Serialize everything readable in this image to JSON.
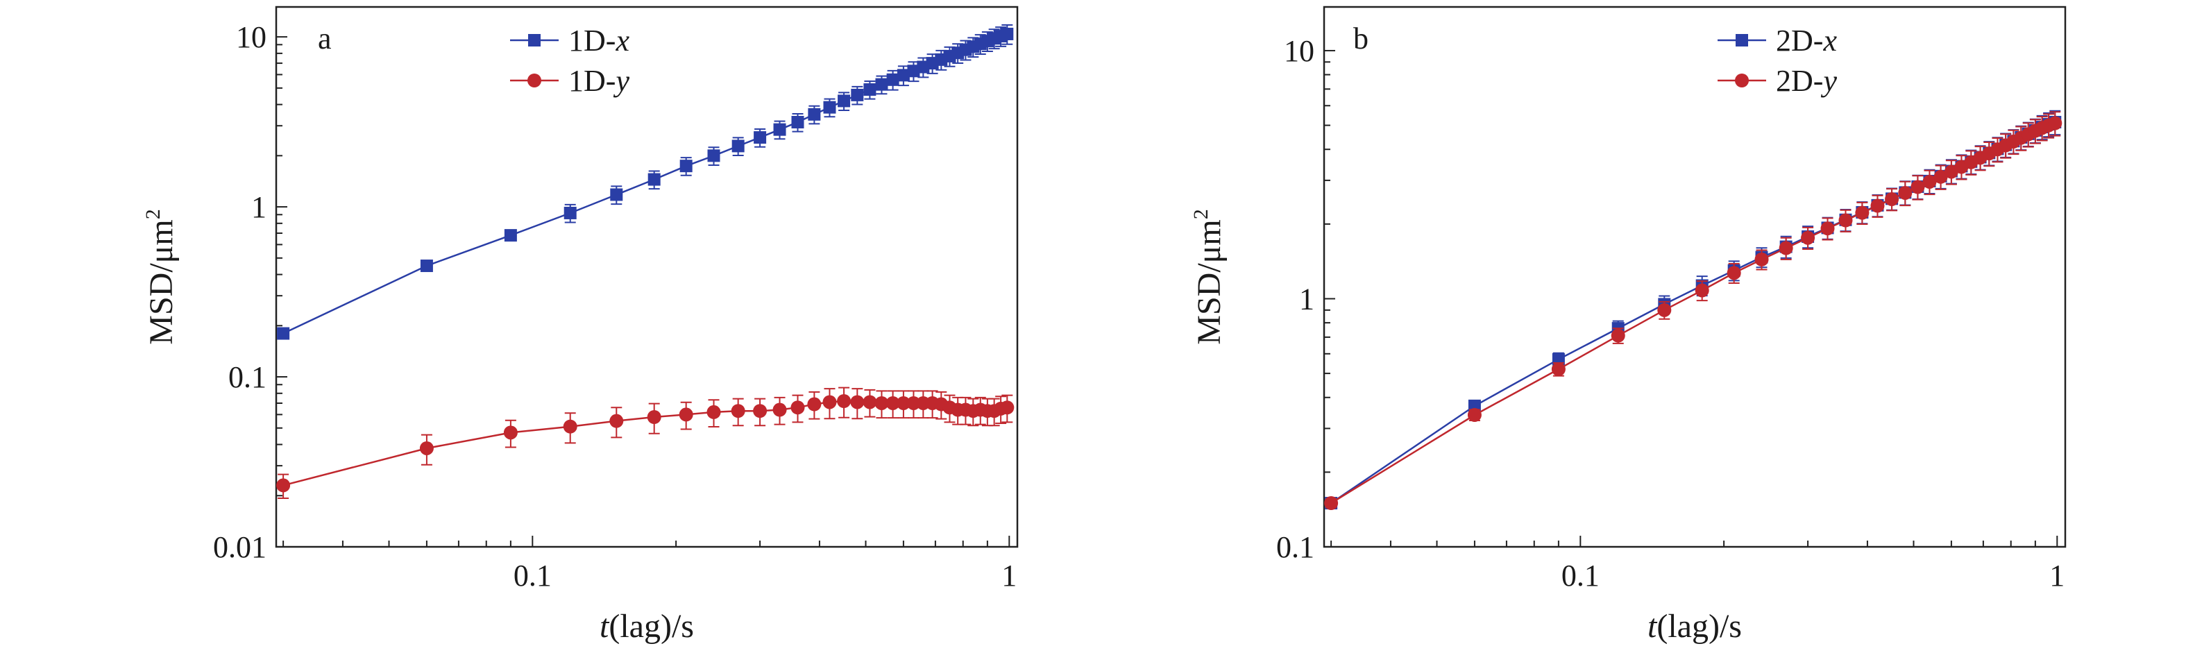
{
  "chart_data": [
    {
      "type": "line",
      "panel_label": "a",
      "xlabel_italic": "t",
      "xlabel_rest": "(lag)/s",
      "ylabel": "MSD/μm",
      "ylabel_sup": "2",
      "xscale": "log",
      "yscale": "log",
      "xlim": [
        0.029,
        1.04
      ],
      "ylim": [
        0.01,
        15
      ],
      "grid": false,
      "legend_position": "top-center",
      "x_ticks": [
        {
          "value": 0.1,
          "label": "0.1"
        },
        {
          "value": 1,
          "label": "1"
        }
      ],
      "y_ticks": [
        {
          "value": 0.01,
          "label": "0.01"
        },
        {
          "value": 0.1,
          "label": "0.1"
        },
        {
          "value": 1,
          "label": "1"
        },
        {
          "value": 10,
          "label": "10"
        }
      ],
      "series": [
        {
          "name_prefix": "1D-",
          "name_italic": "x",
          "color": "#2a3ea6",
          "marker": "square",
          "x": [
            0.03,
            0.06,
            0.09,
            0.12,
            0.15,
            0.18,
            0.21,
            0.24,
            0.27,
            0.3,
            0.33,
            0.36,
            0.39,
            0.42,
            0.45,
            0.48,
            0.51,
            0.54,
            0.57,
            0.6,
            0.63,
            0.66,
            0.69,
            0.72,
            0.75,
            0.78,
            0.81,
            0.84,
            0.87,
            0.9,
            0.93,
            0.96,
            0.99
          ],
          "y": [
            0.18,
            0.45,
            0.68,
            0.92,
            1.18,
            1.45,
            1.74,
            2.0,
            2.28,
            2.56,
            2.85,
            3.15,
            3.5,
            3.85,
            4.2,
            4.55,
            4.9,
            5.25,
            5.6,
            5.95,
            6.3,
            6.65,
            7.0,
            7.35,
            7.7,
            8.05,
            8.4,
            8.75,
            9.1,
            9.45,
            9.8,
            10.1,
            10.4
          ],
          "err_rel": [
            0.04,
            0.05,
            0.07,
            0.12,
            0.12,
            0.12,
            0.12,
            0.12,
            0.12,
            0.12,
            0.12,
            0.12,
            0.12,
            0.12,
            0.12,
            0.12,
            0.12,
            0.12,
            0.13,
            0.13,
            0.13,
            0.13,
            0.13,
            0.13,
            0.13,
            0.13,
            0.13,
            0.13,
            0.13,
            0.13,
            0.13,
            0.13,
            0.13
          ]
        },
        {
          "name_prefix": "1D-",
          "name_italic": "y",
          "color": "#c0272d",
          "marker": "circle",
          "x": [
            0.03,
            0.06,
            0.09,
            0.12,
            0.15,
            0.18,
            0.21,
            0.24,
            0.27,
            0.3,
            0.33,
            0.36,
            0.39,
            0.42,
            0.45,
            0.48,
            0.51,
            0.54,
            0.57,
            0.6,
            0.63,
            0.66,
            0.69,
            0.72,
            0.75,
            0.78,
            0.81,
            0.84,
            0.87,
            0.9,
            0.93,
            0.96,
            0.99
          ],
          "y": [
            0.023,
            0.038,
            0.047,
            0.051,
            0.055,
            0.058,
            0.06,
            0.062,
            0.063,
            0.063,
            0.064,
            0.066,
            0.069,
            0.071,
            0.072,
            0.071,
            0.071,
            0.07,
            0.07,
            0.07,
            0.07,
            0.07,
            0.07,
            0.069,
            0.066,
            0.064,
            0.064,
            0.063,
            0.064,
            0.063,
            0.063,
            0.065,
            0.066
          ],
          "err_rel": [
            0.16,
            0.2,
            0.18,
            0.2,
            0.2,
            0.2,
            0.18,
            0.18,
            0.18,
            0.18,
            0.18,
            0.18,
            0.18,
            0.2,
            0.2,
            0.2,
            0.18,
            0.18,
            0.18,
            0.18,
            0.18,
            0.18,
            0.18,
            0.18,
            0.18,
            0.18,
            0.18,
            0.18,
            0.18,
            0.18,
            0.18,
            0.18,
            0.18
          ]
        }
      ]
    },
    {
      "type": "line",
      "panel_label": "b",
      "xlabel_italic": "t",
      "xlabel_rest": "(lag)/s",
      "ylabel": "MSD/μm",
      "ylabel_sup": "2",
      "xscale": "log",
      "yscale": "log",
      "xlim": [
        0.029,
        1.04
      ],
      "ylim": [
        0.1,
        15
      ],
      "grid": false,
      "legend_position": "top-center",
      "x_ticks": [
        {
          "value": 0.1,
          "label": "0.1"
        },
        {
          "value": 1,
          "label": "1"
        }
      ],
      "y_ticks": [
        {
          "value": 0.1,
          "label": "0.1"
        },
        {
          "value": 1,
          "label": "1"
        },
        {
          "value": 10,
          "label": "10"
        }
      ],
      "series": [
        {
          "name_prefix": "2D-",
          "name_italic": "x",
          "color": "#2a3ea6",
          "marker": "square",
          "x": [
            0.03,
            0.06,
            0.09,
            0.12,
            0.15,
            0.18,
            0.21,
            0.24,
            0.27,
            0.3,
            0.33,
            0.36,
            0.39,
            0.42,
            0.45,
            0.48,
            0.51,
            0.54,
            0.57,
            0.6,
            0.63,
            0.66,
            0.69,
            0.72,
            0.75,
            0.78,
            0.81,
            0.84,
            0.87,
            0.9,
            0.93,
            0.96,
            0.99
          ],
          "y": [
            0.15,
            0.37,
            0.57,
            0.76,
            0.95,
            1.13,
            1.3,
            1.47,
            1.62,
            1.78,
            1.93,
            2.08,
            2.23,
            2.38,
            2.53,
            2.68,
            2.83,
            2.98,
            3.12,
            3.27,
            3.42,
            3.57,
            3.72,
            3.87,
            4.02,
            4.17,
            4.32,
            4.47,
            4.62,
            4.77,
            4.92,
            5.05,
            5.15
          ],
          "err_rel": [
            0.04,
            0.05,
            0.06,
            0.07,
            0.08,
            0.09,
            0.09,
            0.09,
            0.1,
            0.1,
            0.1,
            0.1,
            0.1,
            0.1,
            0.1,
            0.11,
            0.11,
            0.11,
            0.11,
            0.11,
            0.11,
            0.11,
            0.11,
            0.11,
            0.11,
            0.11,
            0.11,
            0.11,
            0.11,
            0.11,
            0.11,
            0.11,
            0.11
          ]
        },
        {
          "name_prefix": "2D-",
          "name_italic": "y",
          "color": "#c0272d",
          "marker": "circle",
          "x": [
            0.03,
            0.06,
            0.09,
            0.12,
            0.15,
            0.18,
            0.21,
            0.24,
            0.27,
            0.3,
            0.33,
            0.36,
            0.39,
            0.42,
            0.45,
            0.48,
            0.51,
            0.54,
            0.57,
            0.6,
            0.63,
            0.66,
            0.69,
            0.72,
            0.75,
            0.78,
            0.81,
            0.84,
            0.87,
            0.9,
            0.93,
            0.96,
            0.99
          ],
          "y": [
            0.15,
            0.34,
            0.52,
            0.71,
            0.9,
            1.08,
            1.27,
            1.44,
            1.6,
            1.76,
            1.92,
            2.07,
            2.22,
            2.37,
            2.52,
            2.67,
            2.82,
            2.96,
            3.1,
            3.25,
            3.4,
            3.55,
            3.7,
            3.85,
            4.0,
            4.15,
            4.3,
            4.45,
            4.6,
            4.75,
            4.88,
            5.0,
            5.1
          ],
          "err_rel": [
            0.04,
            0.05,
            0.06,
            0.07,
            0.08,
            0.09,
            0.09,
            0.09,
            0.1,
            0.1,
            0.1,
            0.1,
            0.1,
            0.1,
            0.1,
            0.11,
            0.11,
            0.11,
            0.11,
            0.11,
            0.11,
            0.11,
            0.11,
            0.11,
            0.11,
            0.11,
            0.11,
            0.11,
            0.11,
            0.11,
            0.11,
            0.11,
            0.11
          ]
        }
      ]
    }
  ]
}
